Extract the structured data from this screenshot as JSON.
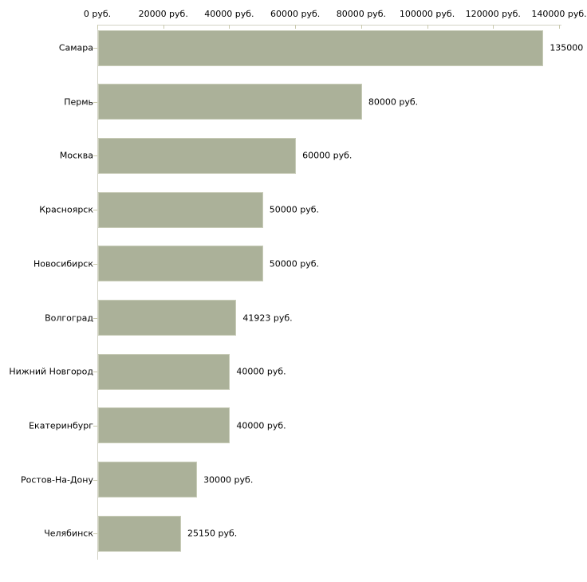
{
  "chart_data": {
    "type": "bar",
    "orientation": "horizontal",
    "title": "",
    "categories": [
      "Самара",
      "Пермь",
      "Москва",
      "Красноярск",
      "Новосибирск",
      "Волгоград",
      "Нижний Новгород",
      "Екатеринбург",
      "Ростов-На-Дону",
      "Челябинск"
    ],
    "values": [
      135000,
      80000,
      60000,
      50000,
      50000,
      41923,
      40000,
      40000,
      30000,
      25150
    ],
    "value_labels": [
      "135000",
      "80000 руб.",
      "60000 руб.",
      "50000 руб.",
      "50000 руб.",
      "41923 руб.",
      "40000 руб.",
      "40000 руб.",
      "30000 руб.",
      "25150 руб."
    ],
    "x_axis": {
      "position": "top",
      "range": [
        0,
        140000
      ],
      "ticks": [
        0,
        20000,
        40000,
        60000,
        80000,
        100000,
        120000,
        140000
      ],
      "tick_labels": [
        "0 руб.",
        "20000 руб.",
        "40000 руб.",
        "60000 руб.",
        "80000 руб.",
        "100000 руб.",
        "120000 руб.",
        "140000 руб."
      ]
    },
    "grid": false,
    "legend": false,
    "colors": {
      "bar_fill": "#abb199",
      "bar_border": "#c8ccb8",
      "axis_line": "#d3d3c5",
      "tick": "#c9c9ad",
      "text": "#000000",
      "background": "#ffffff"
    }
  }
}
